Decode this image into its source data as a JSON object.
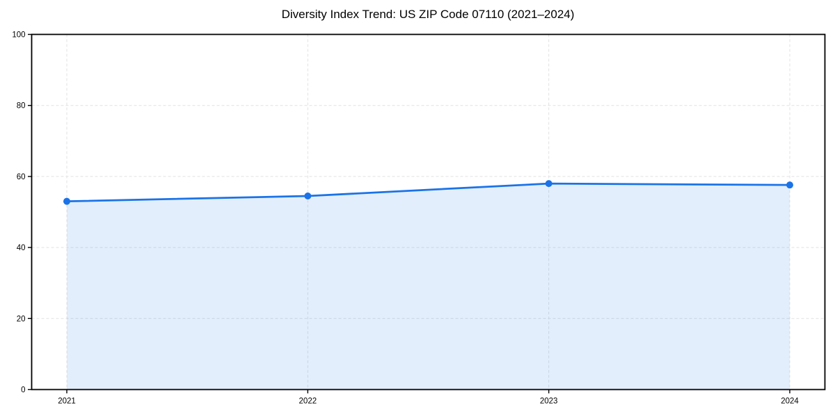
{
  "chart_data": {
    "type": "line",
    "title": "Diversity Index Trend: US ZIP Code 07110 (2021–2024)",
    "categories": [
      "2021",
      "2022",
      "2023",
      "2024"
    ],
    "series": [
      {
        "name": "Diversity Index",
        "values": [
          53.0,
          54.5,
          58.0,
          57.6
        ]
      }
    ],
    "xlabel": "",
    "ylabel": "",
    "ylim": [
      0,
      100
    ],
    "yticks": [
      0,
      20,
      40,
      60,
      80,
      100
    ],
    "grid": true,
    "grid_style": "dashed",
    "legend_position": "none",
    "line_color": "#1a73e8",
    "marker_color": "#1a73e8",
    "fill_color": "#1a73e8",
    "fill_opacity": 0.12,
    "grid_color": "#e2e2e2",
    "axis_color": "#000000",
    "background_color": "#ffffff"
  }
}
